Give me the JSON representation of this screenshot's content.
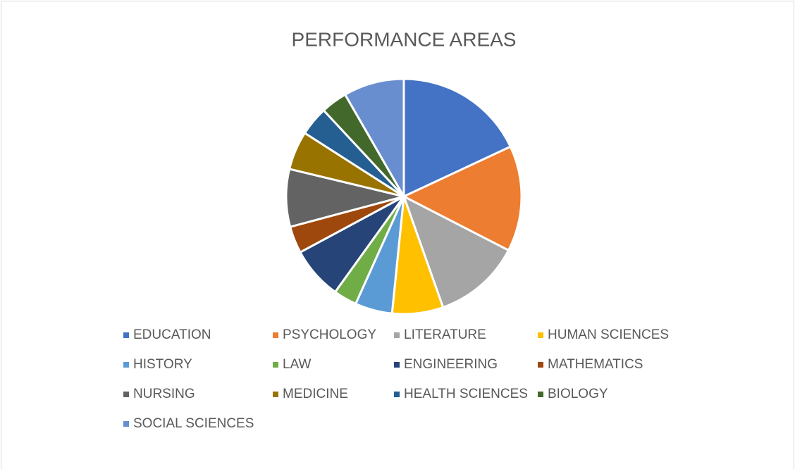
{
  "chart_data": {
    "type": "pie",
    "title": "PERFORMANCE AREAS",
    "categories": [
      "EDUCATION",
      "PSYCHOLOGY",
      "LITERATURE",
      "HUMAN SCIENCES",
      "HISTORY",
      "LAW",
      "ENGINEERING",
      "MATHEMATICS",
      "NURSING",
      "MEDICINE",
      "HEALTH SCIENCES",
      "BIOLOGY",
      "SOCIAL SCIENCES"
    ],
    "values": [
      18,
      14.5,
      12,
      7,
      5.1,
      3.2,
      7.2,
      3.7,
      7.9,
      5.3,
      4,
      3.6,
      8.3
    ],
    "colors": [
      "#4472c4",
      "#ed7d31",
      "#a5a5a5",
      "#ffc000",
      "#5b9bd5",
      "#70ad47",
      "#264478",
      "#9e480e",
      "#636363",
      "#997300",
      "#255e91",
      "#43682b",
      "#698ed0"
    ],
    "legend": "bottom"
  }
}
